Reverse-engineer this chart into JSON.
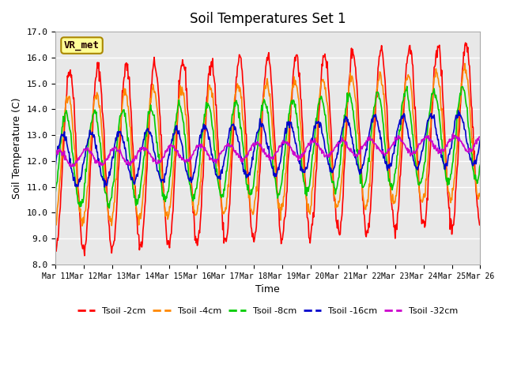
{
  "title": "Soil Temperatures Set 1",
  "xlabel": "Time",
  "ylabel": "Soil Temperature (C)",
  "ylim": [
    8.0,
    17.0
  ],
  "yticks": [
    8.0,
    9.0,
    10.0,
    11.0,
    12.0,
    13.0,
    14.0,
    15.0,
    16.0,
    17.0
  ],
  "annotation_text": "VR_met",
  "bg_color": "#e8e8e8",
  "series_colors": {
    "Tsoil -2cm": "#ff0000",
    "Tsoil -4cm": "#ff8800",
    "Tsoil -8cm": "#00cc00",
    "Tsoil -16cm": "#0000cc",
    "Tsoil -32cm": "#cc00cc"
  },
  "xtick_labels": [
    "Mar 11",
    "Mar 12",
    "Mar 13",
    "Mar 14",
    "Mar 15",
    "Mar 16",
    "Mar 17",
    "Mar 18",
    "Mar 19",
    "Mar 20",
    "Mar 21",
    "Mar 22",
    "Mar 23",
    "Mar 24",
    "Mar 25",
    "Mar 26"
  ],
  "n_days": 15,
  "samples_per_day": 48
}
